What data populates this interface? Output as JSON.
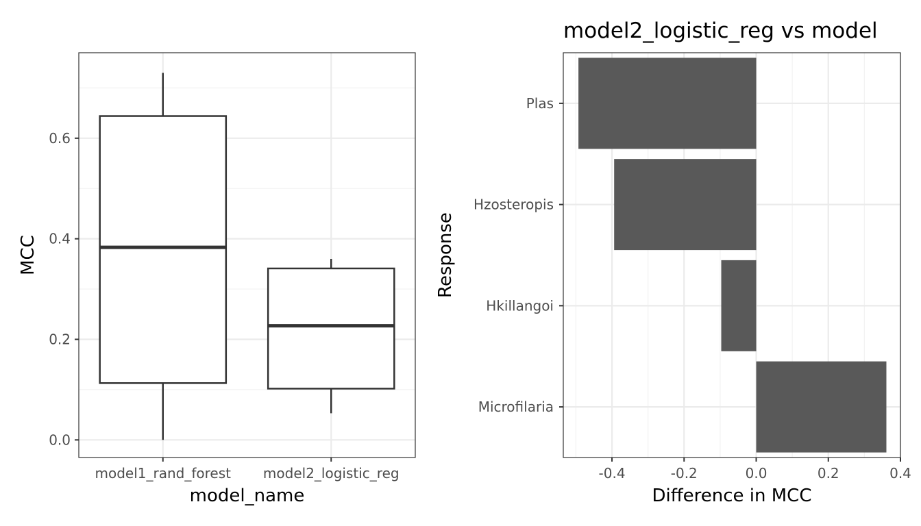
{
  "chart_data": [
    {
      "type": "boxplot",
      "xlabel": "model_name",
      "ylabel": "MCC",
      "categories": [
        "model1_rand_forest",
        "model2_logistic_reg"
      ],
      "boxes": [
        {
          "category": "model1_rand_forest",
          "min": 0.0,
          "q1": 0.113,
          "median": 0.383,
          "q3": 0.644,
          "max": 0.73
        },
        {
          "category": "model2_logistic_reg",
          "min": 0.053,
          "q1": 0.102,
          "median": 0.227,
          "q3": 0.341,
          "max": 0.36
        }
      ],
      "ylim": [
        -0.035,
        0.77
      ],
      "yticks": [
        0.0,
        0.2,
        0.4,
        0.6
      ],
      "ytick_labels": [
        "0.0",
        "0.2",
        "0.4",
        "0.6"
      ],
      "grid": true
    },
    {
      "type": "bar",
      "orientation": "horizontal",
      "title": "model2_logistic_reg vs model",
      "xlabel": "Difference in MCC",
      "ylabel": "Response",
      "categories": [
        "Plas",
        "Hzosteropis",
        "Hkillangoi",
        "Microfilaria"
      ],
      "values": [
        -0.493,
        -0.394,
        -0.097,
        0.361
      ],
      "xlim": [
        -0.535,
        0.4
      ],
      "xticks": [
        -0.4,
        -0.2,
        0.0,
        0.2,
        0.4
      ],
      "xtick_labels": [
        "-0.4",
        "-0.2",
        "0.0",
        "0.2",
        "0.4"
      ],
      "grid": true,
      "bar_color": "#595959"
    }
  ]
}
